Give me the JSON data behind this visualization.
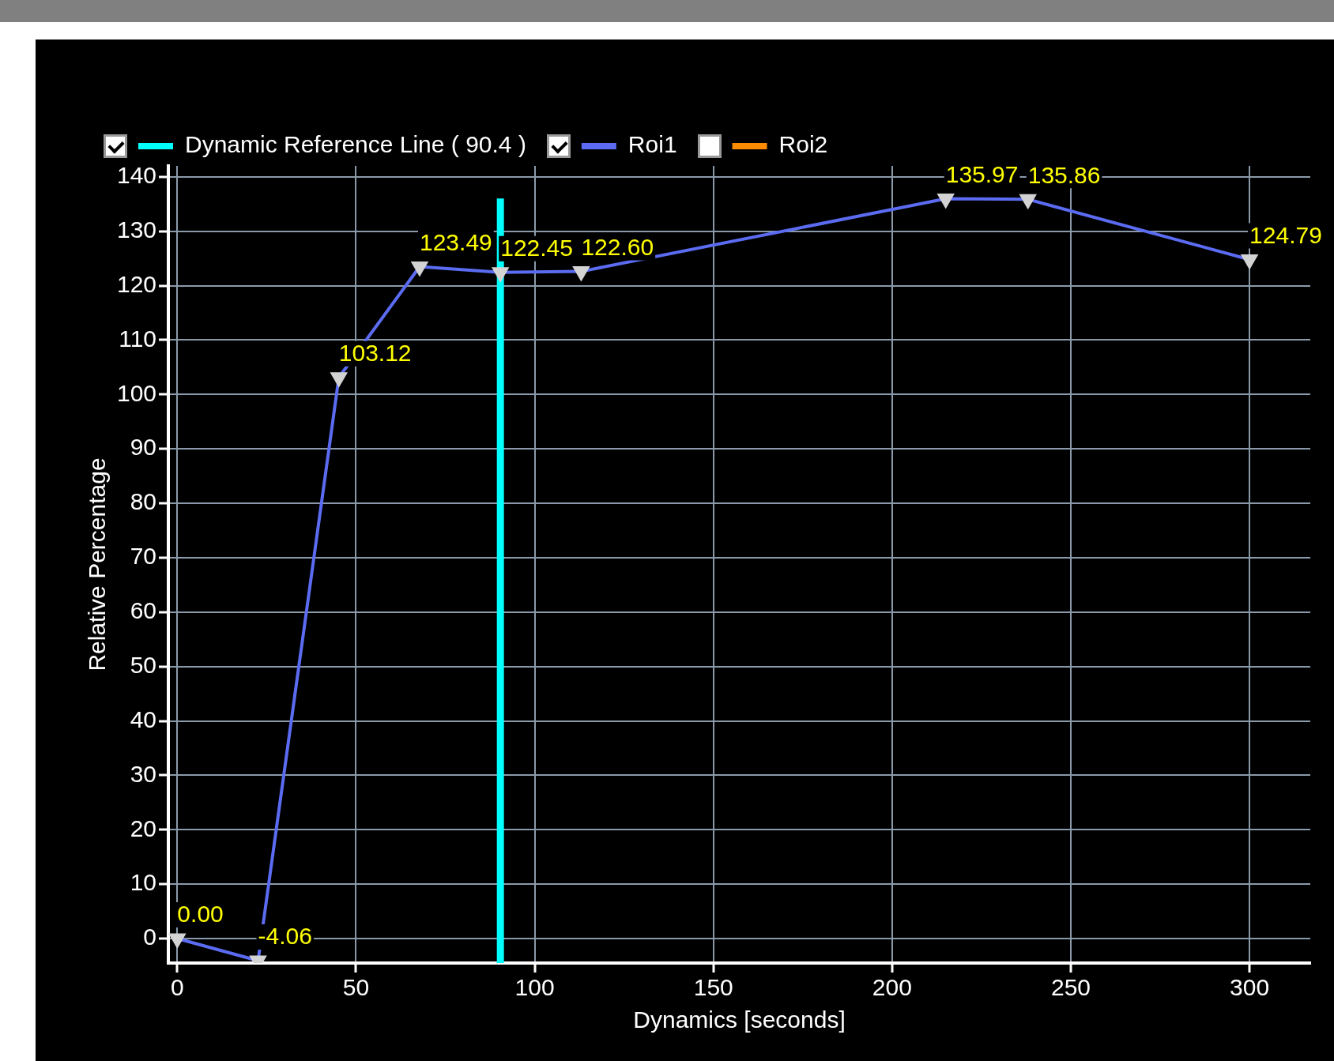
{
  "chart_data": {
    "type": "line",
    "xlabel": "Dynamics [seconds]",
    "ylabel": "Relative Percentage",
    "x": [
      0,
      22.6,
      45.2,
      67.8,
      90.4,
      113,
      215,
      238,
      300
    ],
    "series": [
      {
        "name": "Roi1",
        "color": "#5b6cf2",
        "values": [
          0,
          -4.06,
          103.12,
          123.49,
          122.45,
          122.6,
          135.97,
          135.86,
          124.79
        ],
        "value_labels": [
          "0.00",
          "-4.06",
          "103.12",
          "123.49",
          "122.45",
          "122.60",
          "135.97",
          "135.86",
          "124.79"
        ]
      },
      {
        "name": "Roi2",
        "color": "#ff8c00",
        "values": [
          null,
          null,
          null,
          null,
          null,
          null,
          null,
          null,
          null
        ]
      }
    ],
    "xlim": [
      -2.5,
      317
    ],
    "xticks": [
      0,
      50,
      100,
      150,
      200,
      250,
      300
    ],
    "ylim": [
      -4.5,
      142
    ],
    "yticks": [
      0,
      10,
      20,
      30,
      40,
      50,
      60,
      70,
      80,
      90,
      100,
      110,
      120,
      130,
      140
    ],
    "ref_lines": [
      {
        "axis": "x",
        "value": 90.4,
        "label": "Dynamic Reference Line ( 90.4 )",
        "color": "#00ffff"
      }
    ],
    "grid": true,
    "legend": "top",
    "marker": "triangle",
    "line_style": "solid"
  }
}
